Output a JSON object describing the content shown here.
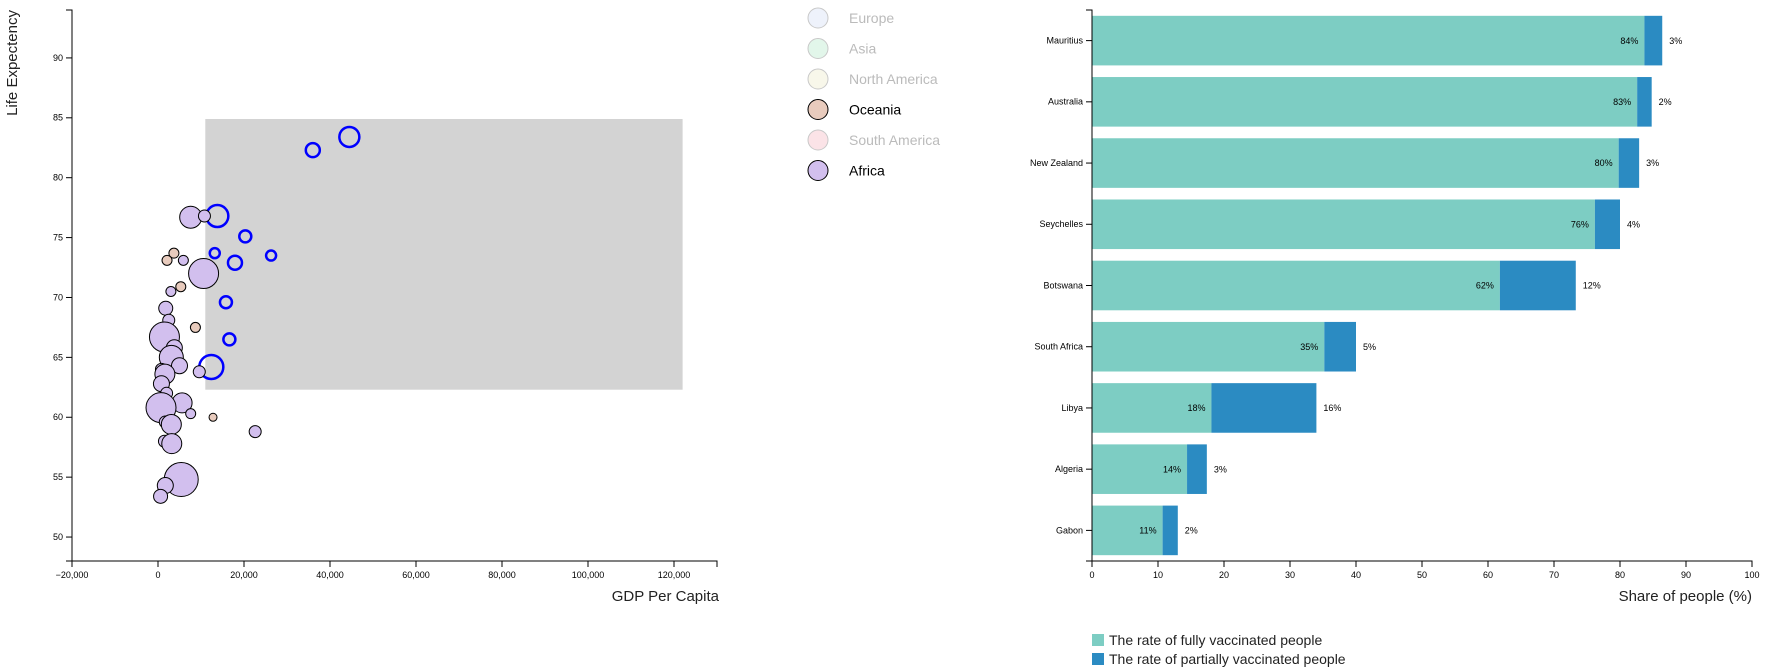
{
  "colors": {
    "brush": "#d3d3d3",
    "highlight": "#0000ff",
    "fully": "#7dcdc3",
    "partially": "#2b8bc2",
    "legend_inactive_text": "#bbbbbb",
    "legend_active_text": "#000000"
  },
  "scatter_legend": [
    {
      "name": "Europe",
      "color": "#eef2fb",
      "active": false
    },
    {
      "name": "Asia",
      "color": "#e2f6ea",
      "active": false
    },
    {
      "name": "North America",
      "color": "#f8f7ea",
      "active": false
    },
    {
      "name": "Oceania",
      "color": "#e8cbbd",
      "active": true
    },
    {
      "name": "South America",
      "color": "#fbe3e7",
      "active": false
    },
    {
      "name": "Africa",
      "color": "#d2bfee",
      "active": true
    }
  ],
  "bar_legend": [
    {
      "name": "The rate of fully vaccinated people",
      "color": "#7dcdc3"
    },
    {
      "name": "The rate of partially vaccinated people",
      "color": "#2b8bc2"
    }
  ],
  "chart_data": [
    {
      "type": "scatter",
      "title": "",
      "xlabel": "GDP Per Capita",
      "ylabel": "Life Expectency",
      "xlim": [
        -20000,
        130000
      ],
      "ylim": [
        48,
        94
      ],
      "xticks": [
        "−20,000",
        "0",
        "20,000",
        "40,000",
        "60,000",
        "80,000",
        "100,000",
        "120,000"
      ],
      "xtick_values": [
        -20000,
        0,
        20000,
        40000,
        60000,
        80000,
        100000,
        120000
      ],
      "yticks": [
        "50",
        "55",
        "60",
        "65",
        "70",
        "75",
        "80",
        "85",
        "90"
      ],
      "ytick_values": [
        50,
        55,
        60,
        65,
        70,
        75,
        80,
        85,
        90
      ],
      "brush": {
        "x0": 11000,
        "x1": 122000,
        "y0": 62.3,
        "y1": 84.9
      },
      "points": [
        {
          "x": 44500,
          "y": 83.4,
          "r": 10,
          "group": "highlight"
        },
        {
          "x": 36000,
          "y": 82.3,
          "r": 7,
          "group": "highlight"
        },
        {
          "x": 13800,
          "y": 76.8,
          "r": 11,
          "group": "highlight"
        },
        {
          "x": 20300,
          "y": 75.1,
          "r": 6,
          "group": "highlight"
        },
        {
          "x": 13200,
          "y": 73.7,
          "r": 5,
          "group": "highlight"
        },
        {
          "x": 26300,
          "y": 73.5,
          "r": 5,
          "group": "highlight"
        },
        {
          "x": 17900,
          "y": 72.9,
          "r": 7,
          "group": "highlight"
        },
        {
          "x": 15800,
          "y": 69.6,
          "r": 6,
          "group": "highlight"
        },
        {
          "x": 16600,
          "y": 66.5,
          "r": 6,
          "group": "highlight"
        },
        {
          "x": 12400,
          "y": 64.2,
          "r": 12,
          "group": "highlight"
        },
        {
          "x": 7600,
          "y": 76.7,
          "r": 11,
          "group": "Africa"
        },
        {
          "x": 10800,
          "y": 76.8,
          "r": 6,
          "group": "Africa"
        },
        {
          "x": 10600,
          "y": 72.0,
          "r": 15,
          "group": "Africa"
        },
        {
          "x": 3700,
          "y": 73.7,
          "r": 5,
          "group": "Oceania"
        },
        {
          "x": 2100,
          "y": 73.1,
          "r": 5,
          "group": "Oceania"
        },
        {
          "x": 5900,
          "y": 73.1,
          "r": 5,
          "group": "Africa"
        },
        {
          "x": 5300,
          "y": 70.9,
          "r": 5,
          "group": "Oceania"
        },
        {
          "x": 3000,
          "y": 70.5,
          "r": 5,
          "group": "Africa"
        },
        {
          "x": 1800,
          "y": 69.1,
          "r": 7,
          "group": "Africa"
        },
        {
          "x": 2500,
          "y": 68.1,
          "r": 6,
          "group": "Africa"
        },
        {
          "x": 8700,
          "y": 67.5,
          "r": 5,
          "group": "Oceania"
        },
        {
          "x": 1500,
          "y": 66.7,
          "r": 15,
          "group": "Africa"
        },
        {
          "x": 3800,
          "y": 65.8,
          "r": 8,
          "group": "Africa"
        },
        {
          "x": 3100,
          "y": 65.0,
          "r": 12,
          "group": "Africa"
        },
        {
          "x": 5000,
          "y": 64.3,
          "r": 8,
          "group": "Africa"
        },
        {
          "x": 800,
          "y": 64.0,
          "r": 6,
          "group": "Africa"
        },
        {
          "x": 1600,
          "y": 63.6,
          "r": 10,
          "group": "Africa"
        },
        {
          "x": 9600,
          "y": 63.8,
          "r": 6,
          "group": "Africa"
        },
        {
          "x": 800,
          "y": 62.8,
          "r": 8,
          "group": "Africa"
        },
        {
          "x": 2000,
          "y": 62.0,
          "r": 6,
          "group": "Africa"
        },
        {
          "x": 5600,
          "y": 61.2,
          "r": 10,
          "group": "Africa"
        },
        {
          "x": 1200,
          "y": 61.0,
          "r": 6,
          "group": "Africa"
        },
        {
          "x": 700,
          "y": 60.8,
          "r": 15,
          "group": "Africa"
        },
        {
          "x": 7600,
          "y": 60.3,
          "r": 5,
          "group": "Africa"
        },
        {
          "x": 12800,
          "y": 60.0,
          "r": 4,
          "group": "Oceania"
        },
        {
          "x": 1700,
          "y": 59.6,
          "r": 6,
          "group": "Africa"
        },
        {
          "x": 3100,
          "y": 59.4,
          "r": 10,
          "group": "Africa"
        },
        {
          "x": 22600,
          "y": 58.8,
          "r": 6,
          "group": "Africa"
        },
        {
          "x": 1500,
          "y": 58.0,
          "r": 6,
          "group": "Africa"
        },
        {
          "x": 3200,
          "y": 57.8,
          "r": 10,
          "group": "Africa"
        },
        {
          "x": 5400,
          "y": 54.8,
          "r": 17,
          "group": "Africa"
        },
        {
          "x": 1700,
          "y": 54.3,
          "r": 8,
          "group": "Africa"
        },
        {
          "x": 600,
          "y": 53.4,
          "r": 7,
          "group": "Africa"
        }
      ]
    },
    {
      "type": "bar",
      "title": "",
      "xlabel": "Share of people (%)",
      "ylabel": "",
      "xlim": [
        0,
        100
      ],
      "xticks": [
        "0",
        "10",
        "20",
        "30",
        "40",
        "50",
        "60",
        "70",
        "80",
        "90",
        "100"
      ],
      "xtick_values": [
        0,
        10,
        20,
        30,
        40,
        50,
        60,
        70,
        80,
        90,
        100
      ],
      "categories": [
        "Mauritius",
        "Australia",
        "New Zealand",
        "Seychelles",
        "Botswana",
        "South Africa",
        "Libya",
        "Algeria",
        "Gabon"
      ],
      "series": [
        {
          "name": "The rate of fully vaccinated people",
          "values": [
            83.7,
            82.6,
            79.8,
            76.2,
            61.8,
            35.2,
            18.1,
            14.4,
            10.7
          ],
          "labels": [
            "84%",
            "83%",
            "80%",
            "76%",
            "62%",
            "35%",
            "18%",
            "14%",
            "11%"
          ]
        },
        {
          "name": "The rate of partially vaccinated people",
          "values": [
            2.7,
            2.2,
            3.1,
            3.8,
            11.5,
            4.8,
            15.9,
            3.0,
            2.3
          ],
          "labels": [
            "3%",
            "2%",
            "3%",
            "4%",
            "12%",
            "5%",
            "16%",
            "3%",
            "2%"
          ]
        }
      ]
    }
  ]
}
